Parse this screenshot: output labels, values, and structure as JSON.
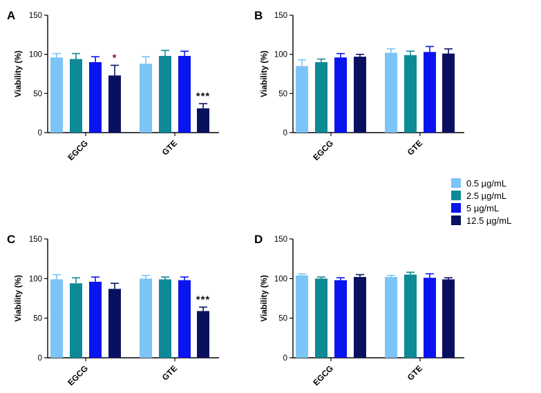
{
  "legend": [
    {
      "label": "0.5 µg/mL",
      "color": "#7cc4f6"
    },
    {
      "label": "2.5 µg/mL",
      "color": "#0d8a96"
    },
    {
      "label": "5 µg/mL",
      "color": "#0a14f0"
    },
    {
      "label": "12.5 µg/mL",
      "color": "#0a1060"
    }
  ],
  "chart_data": [
    {
      "panel": "A",
      "type": "bar",
      "categories": [
        "EGCG",
        "GTE"
      ],
      "ylabel": "Viability (%)",
      "ylim": [
        0,
        150
      ],
      "yticks": [
        0,
        50,
        100,
        150
      ],
      "series": [
        {
          "name": "0.5 µg/mL",
          "values": [
            96,
            88
          ],
          "errors": [
            5,
            9
          ]
        },
        {
          "name": "2.5 µg/mL",
          "values": [
            94,
            98
          ],
          "errors": [
            7,
            7
          ]
        },
        {
          "name": "5 µg/mL",
          "values": [
            90,
            98
          ],
          "errors": [
            7,
            6
          ]
        },
        {
          "name": "12.5 µg/mL",
          "values": [
            73,
            31
          ],
          "errors": [
            13,
            6
          ]
        }
      ],
      "annotations": [
        {
          "category": 0,
          "series": 3,
          "text": "*",
          "color": "#7a1b1b"
        },
        {
          "category": 1,
          "series": 3,
          "text": "***",
          "color": "#111111"
        }
      ]
    },
    {
      "panel": "B",
      "type": "bar",
      "categories": [
        "EGCG",
        "GTE"
      ],
      "ylabel": "Viability (%)",
      "ylim": [
        0,
        150
      ],
      "yticks": [
        0,
        50,
        100,
        150
      ],
      "series": [
        {
          "name": "0.5 µg/mL",
          "values": [
            85,
            102
          ],
          "errors": [
            8,
            5
          ]
        },
        {
          "name": "2.5 µg/mL",
          "values": [
            90,
            99
          ],
          "errors": [
            4,
            5
          ]
        },
        {
          "name": "5 µg/mL",
          "values": [
            96,
            103
          ],
          "errors": [
            5,
            7
          ]
        },
        {
          "name": "12.5 µg/mL",
          "values": [
            97,
            101
          ],
          "errors": [
            3,
            6
          ]
        }
      ],
      "annotations": []
    },
    {
      "panel": "C",
      "type": "bar",
      "categories": [
        "EGCG",
        "GTE"
      ],
      "ylabel": "Viability (%)",
      "ylim": [
        0,
        150
      ],
      "yticks": [
        0,
        50,
        100,
        150
      ],
      "series": [
        {
          "name": "0.5 µg/mL",
          "values": [
            99,
            100
          ],
          "errors": [
            6,
            4
          ]
        },
        {
          "name": "2.5 µg/mL",
          "values": [
            94,
            99
          ],
          "errors": [
            7,
            3
          ]
        },
        {
          "name": "5 µg/mL",
          "values": [
            96,
            98
          ],
          "errors": [
            6,
            4
          ]
        },
        {
          "name": "12.5 µg/mL",
          "values": [
            87,
            59
          ],
          "errors": [
            7,
            5
          ]
        }
      ],
      "annotations": [
        {
          "category": 1,
          "series": 3,
          "text": "***",
          "color": "#111111"
        }
      ]
    },
    {
      "panel": "D",
      "type": "bar",
      "categories": [
        "EGCG",
        "GTE"
      ],
      "ylabel": "Viability (%)",
      "ylim": [
        0,
        150
      ],
      "yticks": [
        0,
        50,
        100,
        150
      ],
      "series": [
        {
          "name": "0.5 µg/mL",
          "values": [
            104,
            102
          ],
          "errors": [
            2,
            2
          ]
        },
        {
          "name": "2.5 µg/mL",
          "values": [
            100,
            105
          ],
          "errors": [
            2,
            3
          ]
        },
        {
          "name": "5 µg/mL",
          "values": [
            98,
            101
          ],
          "errors": [
            3,
            5
          ]
        },
        {
          "name": "12.5 µg/mL",
          "values": [
            102,
            99
          ],
          "errors": [
            3,
            2
          ]
        }
      ],
      "annotations": []
    }
  ]
}
